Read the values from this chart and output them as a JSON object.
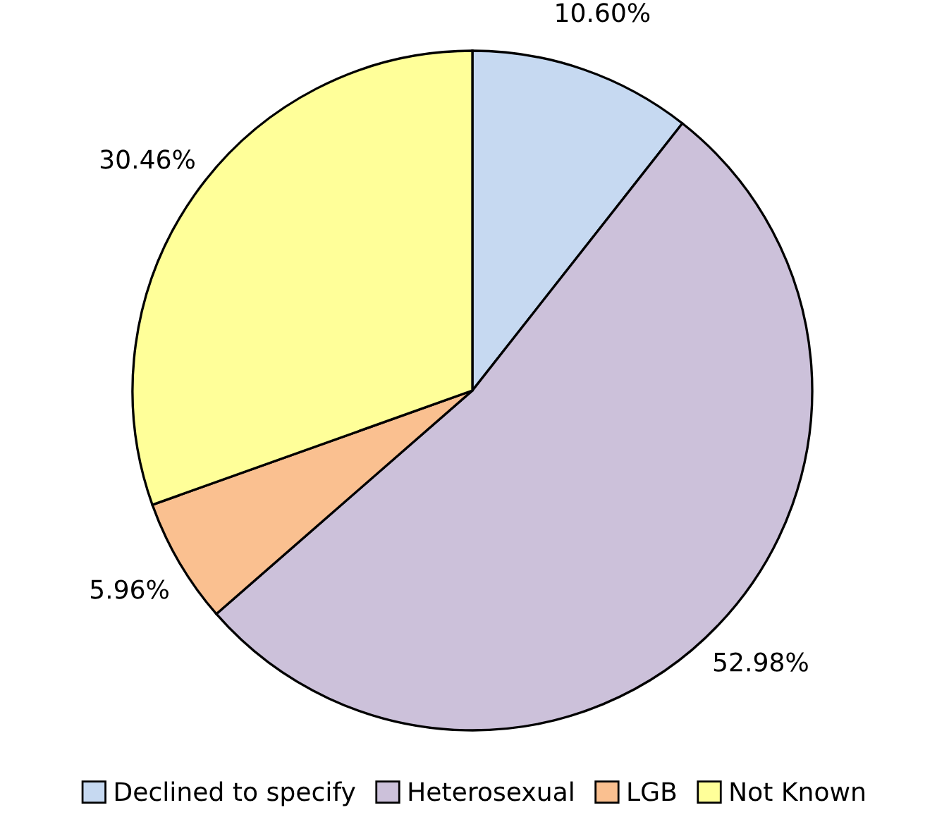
{
  "chart_data": {
    "type": "pie",
    "categories": [
      "Declined to specify",
      "Heterosexual",
      "LGB",
      "Not Known"
    ],
    "values": [
      10.6,
      52.98,
      5.96,
      30.46
    ],
    "value_labels": [
      "10.60%",
      "52.98%",
      "5.96%",
      "30.46%"
    ],
    "colors": [
      "#c6d9f1",
      "#ccc1da",
      "#fac090",
      "#ffff99"
    ],
    "legend": "bottom"
  }
}
